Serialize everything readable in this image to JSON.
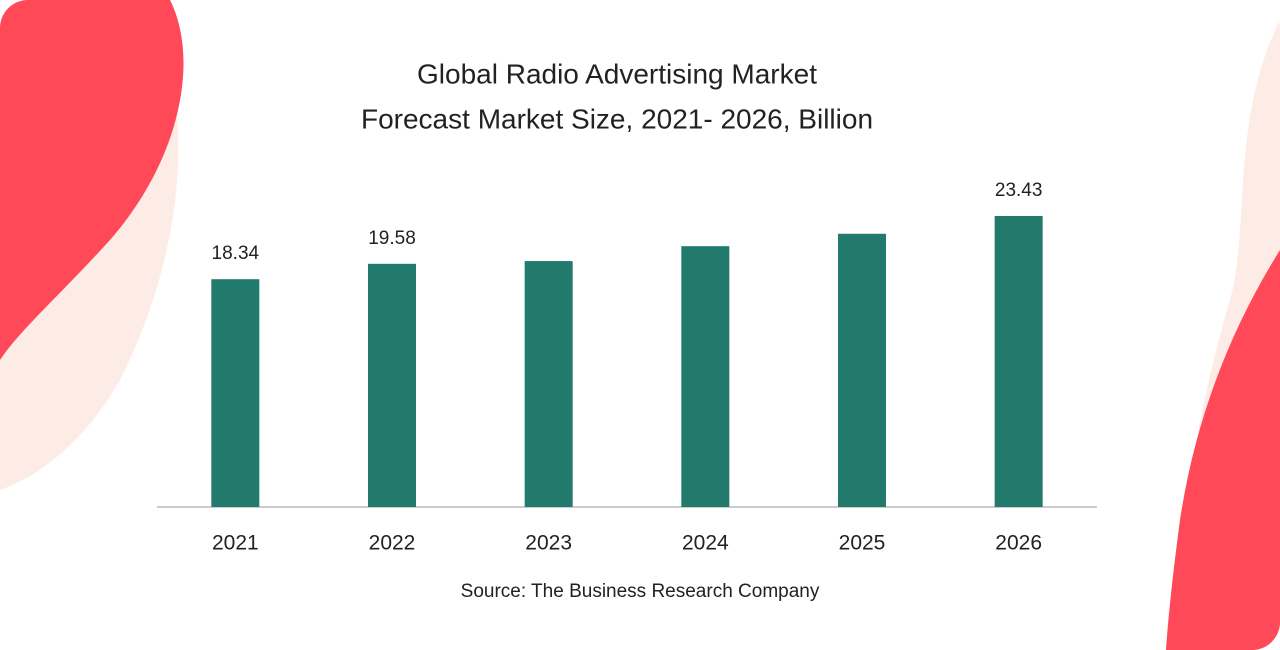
{
  "chart_data": {
    "type": "bar",
    "title": "Global Radio Advertising Market",
    "subtitle": "Forecast Market Size, 2021- 2026, Billion",
    "categories": [
      "2021",
      "2022",
      "2023",
      "2024",
      "2025",
      "2026"
    ],
    "values": [
      18.34,
      19.58,
      19.8,
      21.0,
      22.0,
      23.43
    ],
    "value_labels": [
      "18.34",
      "19.58",
      null,
      null,
      null,
      "23.43"
    ],
    "color": "#217a6b",
    "source": "Source: The Business Research Company"
  }
}
